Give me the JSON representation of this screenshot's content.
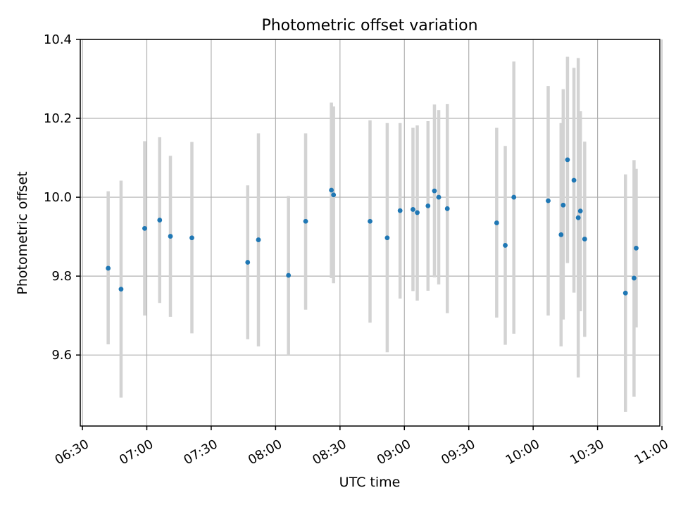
{
  "chart_data": {
    "type": "scatter",
    "title": "Photometric offset variation",
    "xlabel": "UTC time",
    "ylabel": "Photometric offset",
    "xlim": [
      "06:29",
      "10:59"
    ],
    "ylim": [
      9.42,
      10.4
    ],
    "x_ticks": [
      "06:30",
      "07:00",
      "07:30",
      "08:00",
      "08:30",
      "09:00",
      "09:30",
      "10:00",
      "10:30",
      "11:00"
    ],
    "y_ticks": [
      "9.6",
      "9.8",
      "10.0",
      "10.2",
      "10.4"
    ],
    "grid": true,
    "colors": {
      "points": "#1f77b4",
      "error_bars": "#d3d3d3"
    },
    "series": [
      {
        "points": [
          {
            "x": "06:42",
            "y": 9.82,
            "lo": 9.627,
            "hi": 10.015
          },
          {
            "x": "06:48",
            "y": 9.767,
            "lo": 9.492,
            "hi": 10.042
          },
          {
            "x": "06:59",
            "y": 9.921,
            "lo": 9.7,
            "hi": 10.142
          },
          {
            "x": "07:06",
            "y": 9.942,
            "lo": 9.732,
            "hi": 10.152
          },
          {
            "x": "07:11",
            "y": 9.901,
            "lo": 9.697,
            "hi": 10.105
          },
          {
            "x": "07:21",
            "y": 9.897,
            "lo": 9.655,
            "hi": 10.14
          },
          {
            "x": "07:47",
            "y": 9.835,
            "lo": 9.64,
            "hi": 10.03
          },
          {
            "x": "07:52",
            "y": 9.892,
            "lo": 9.622,
            "hi": 10.162
          },
          {
            "x": "08:06",
            "y": 9.802,
            "lo": 9.6,
            "hi": 10.003
          },
          {
            "x": "08:14",
            "y": 9.939,
            "lo": 9.715,
            "hi": 10.162
          },
          {
            "x": "08:26",
            "y": 10.018,
            "lo": 9.795,
            "hi": 10.24
          },
          {
            "x": "08:27",
            "y": 10.006,
            "lo": 9.782,
            "hi": 10.23
          },
          {
            "x": "08:44",
            "y": 9.939,
            "lo": 9.682,
            "hi": 10.195
          },
          {
            "x": "08:52",
            "y": 9.897,
            "lo": 9.607,
            "hi": 10.188
          },
          {
            "x": "08:58",
            "y": 9.966,
            "lo": 9.743,
            "hi": 10.188
          },
          {
            "x": "09:04",
            "y": 9.969,
            "lo": 9.762,
            "hi": 10.176
          },
          {
            "x": "09:06",
            "y": 9.961,
            "lo": 9.738,
            "hi": 10.182
          },
          {
            "x": "09:11",
            "y": 9.978,
            "lo": 9.763,
            "hi": 10.193
          },
          {
            "x": "09:14",
            "y": 10.016,
            "lo": 9.797,
            "hi": 10.235
          },
          {
            "x": "09:16",
            "y": 10.0,
            "lo": 9.779,
            "hi": 10.221
          },
          {
            "x": "09:20",
            "y": 9.971,
            "lo": 9.706,
            "hi": 10.236
          },
          {
            "x": "09:43",
            "y": 9.935,
            "lo": 9.695,
            "hi": 10.176
          },
          {
            "x": "09:47",
            "y": 9.878,
            "lo": 9.626,
            "hi": 10.13
          },
          {
            "x": "09:51",
            "y": 10.0,
            "lo": 9.654,
            "hi": 10.344
          },
          {
            "x": "10:07",
            "y": 9.991,
            "lo": 9.7,
            "hi": 10.282
          },
          {
            "x": "10:13",
            "y": 9.905,
            "lo": 9.622,
            "hi": 10.188
          },
          {
            "x": "10:14",
            "y": 9.98,
            "lo": 9.69,
            "hi": 10.274
          },
          {
            "x": "10:16",
            "y": 10.095,
            "lo": 9.833,
            "hi": 10.356
          },
          {
            "x": "10:19",
            "y": 10.043,
            "lo": 9.758,
            "hi": 10.328
          },
          {
            "x": "10:21",
            "y": 9.948,
            "lo": 9.543,
            "hi": 10.353
          },
          {
            "x": "10:22",
            "y": 9.965,
            "lo": 9.711,
            "hi": 10.218
          },
          {
            "x": "10:24",
            "y": 9.894,
            "lo": 9.646,
            "hi": 10.141
          },
          {
            "x": "10:43",
            "y": 9.757,
            "lo": 9.456,
            "hi": 10.058
          },
          {
            "x": "10:47",
            "y": 9.795,
            "lo": 9.494,
            "hi": 10.094
          },
          {
            "x": "10:48",
            "y": 9.871,
            "lo": 9.67,
            "hi": 10.072
          }
        ]
      }
    ]
  }
}
